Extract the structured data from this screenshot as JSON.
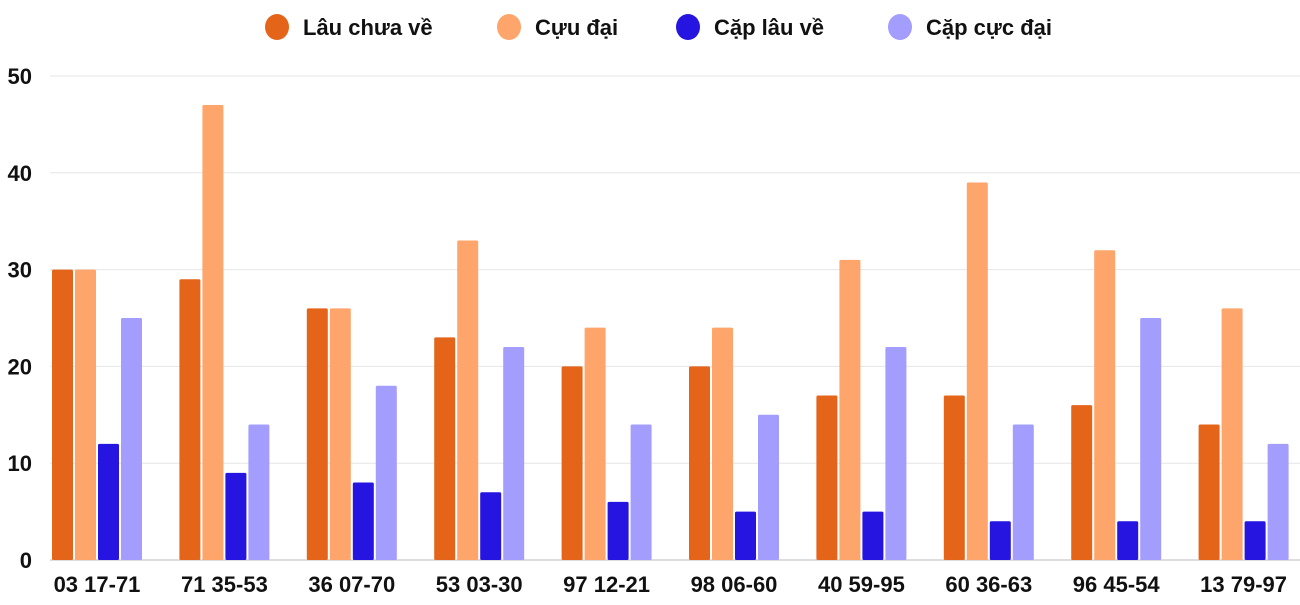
{
  "chart_data": {
    "type": "bar",
    "title": "",
    "xlabel": "",
    "ylabel": "",
    "ylim": [
      0,
      50
    ],
    "yticks": [
      0,
      10,
      20,
      30,
      40,
      50
    ],
    "grid": true,
    "legend_position": "top-center",
    "categories": [
      "03 17-71",
      "71 35-53",
      "36 07-70",
      "53 03-30",
      "97 12-21",
      "98 06-60",
      "40 59-95",
      "60 36-63",
      "96 45-54",
      "13 79-97"
    ],
    "series": [
      {
        "name": "Lâu chưa về",
        "color": "#e4651a",
        "values": [
          30,
          29,
          26,
          23,
          20,
          20,
          17,
          17,
          16,
          14
        ]
      },
      {
        "name": "Cựu đại",
        "color": "#fea56c",
        "values": [
          30,
          47,
          26,
          33,
          24,
          24,
          31,
          39,
          32,
          26
        ]
      },
      {
        "name": "Cặp lâu về",
        "color": "#2614e0",
        "values": [
          12,
          9,
          8,
          7,
          6,
          5,
          5,
          4,
          4,
          4
        ]
      },
      {
        "name": "Cặp cực đại",
        "color": "#a39dfd",
        "values": [
          25,
          14,
          18,
          22,
          14,
          15,
          22,
          14,
          25,
          12
        ]
      }
    ]
  }
}
